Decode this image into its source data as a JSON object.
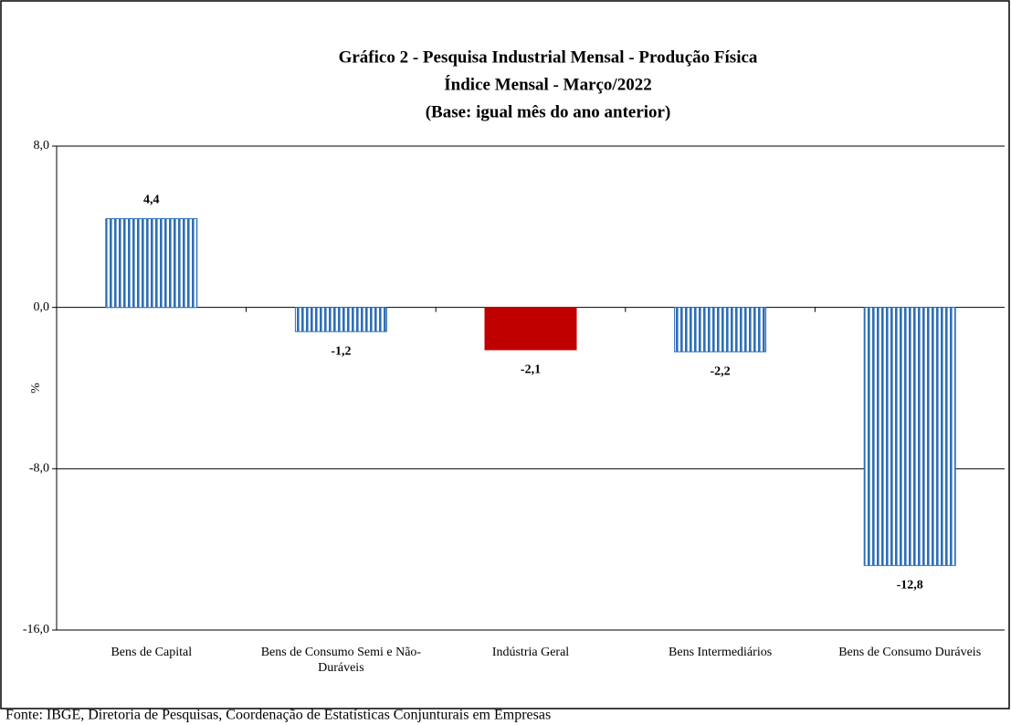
{
  "chart_data": {
    "type": "bar",
    "title": [
      "Gráfico 2 - Pesquisa Industrial Mensal - Produção Física",
      "Índice Mensal - Março/2022",
      "(Base: igual mês do ano anterior)"
    ],
    "y_label": "%",
    "categories": [
      "Bens de Capital",
      "Bens de Consumo Semi e Não-Duráveis",
      "Indústria Geral",
      "Bens Intermediários",
      "Bens de Consumo Duráveis"
    ],
    "values": [
      4.4,
      -1.2,
      -2.1,
      -2.2,
      -12.8
    ],
    "value_labels": [
      "4,4",
      "-1,2",
      "-2,1",
      "-2,2",
      "-12,8"
    ],
    "colors": [
      "#2e6fb5",
      "#2e6fb5",
      "#c00000",
      "#2e6fb5",
      "#2e6fb5"
    ],
    "patterns": [
      "vertical-stripes",
      "vertical-stripes",
      "solid",
      "vertical-stripes",
      "vertical-stripes"
    ],
    "ylim": [
      -16,
      8
    ],
    "yticks": [
      {
        "value": 8,
        "label": "8,0"
      },
      {
        "value": 0,
        "label": "0,0"
      },
      {
        "value": -8,
        "label": "-8,0"
      },
      {
        "value": -16,
        "label": "-16,0"
      }
    ],
    "grid": true,
    "source": "Fonte: IBGE, Diretoria de Pesquisas, Coordenação de Estatísticas Conjunturais em Empresas"
  }
}
